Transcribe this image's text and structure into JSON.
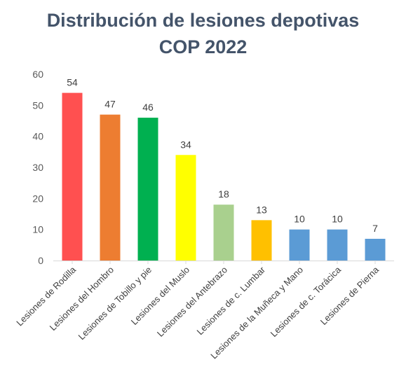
{
  "chart_data": {
    "type": "bar",
    "title_line1": "Distribución de lesiones depotivas",
    "title_line2": "COP 2022",
    "xlabel": "",
    "ylabel": "",
    "ylim": [
      0,
      60
    ],
    "yticks": [
      0,
      10,
      20,
      30,
      40,
      50,
      60
    ],
    "grid": false,
    "legend": "none",
    "categories": [
      "Lesiones de Rodilla",
      "Lesiones del Hombro",
      "Lesiones de Tobillo y pie",
      "Lesiones del Muslo",
      "Lesiones del Antebrazo",
      "Lesiones de c. Lumbar",
      "Lesiones de la Muñeca y Mano",
      "Lesiones de c. Torácica",
      "Lesiones de Pierna"
    ],
    "values": [
      54,
      47,
      46,
      34,
      18,
      13,
      10,
      10,
      7
    ],
    "colors": [
      "#ff5050",
      "#ed7d31",
      "#00b050",
      "#ffff00",
      "#a9d08e",
      "#ffc000",
      "#5b9bd5",
      "#5b9bd5",
      "#5b9bd5"
    ]
  }
}
